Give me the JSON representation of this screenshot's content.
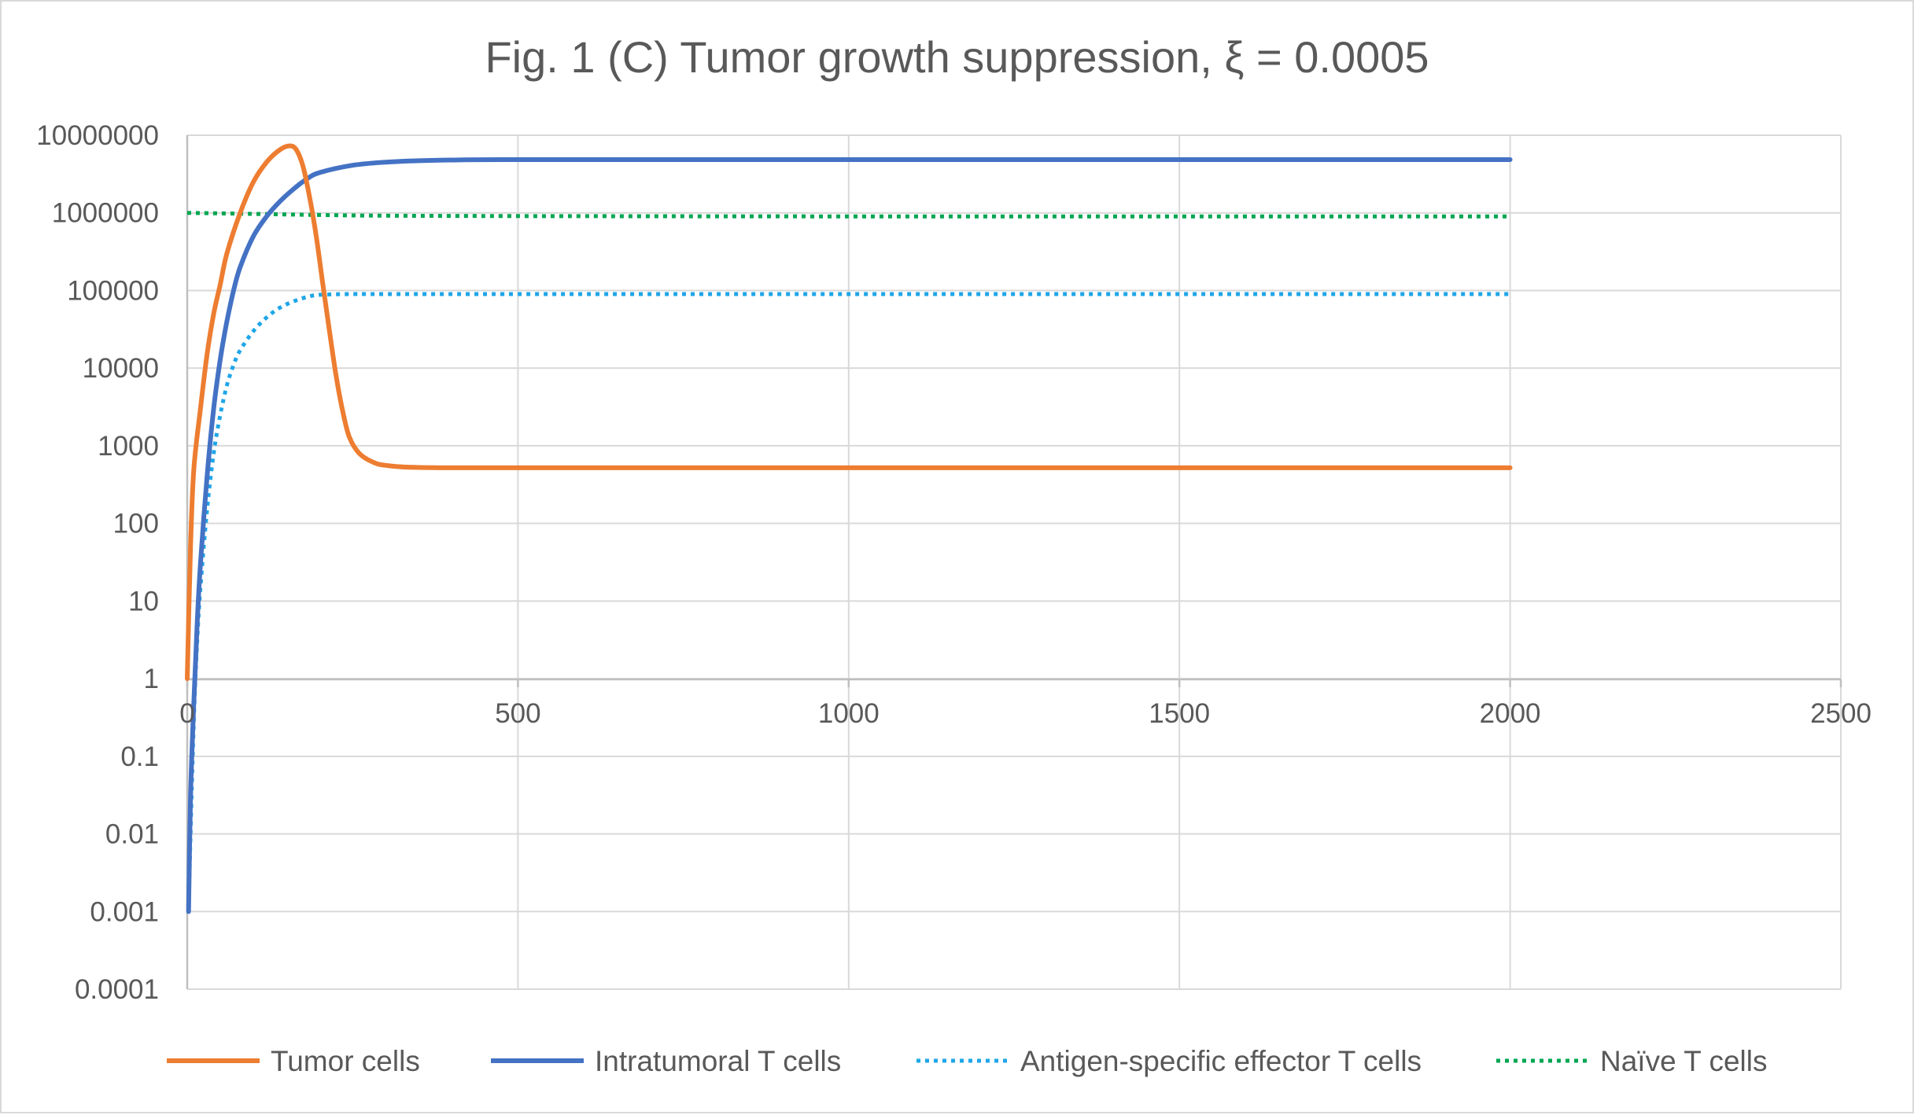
{
  "chart_data": {
    "type": "line",
    "title": "Fig. 1 (C) Tumor growth suppression, ξ = 0.0005",
    "xlabel": "",
    "ylabel": "",
    "xlim": [
      0,
      2500
    ],
    "ylim": [
      0.0001,
      10000000
    ],
    "y_scale": "log",
    "grid": true,
    "legend_position": "bottom",
    "x_ticks": [
      {
        "value": 0,
        "label": "0"
      },
      {
        "value": 500,
        "label": "500"
      },
      {
        "value": 1000,
        "label": "1000"
      },
      {
        "value": 1500,
        "label": "1500"
      },
      {
        "value": 2000,
        "label": "2000"
      },
      {
        "value": 2500,
        "label": "2500"
      }
    ],
    "y_ticks": [
      {
        "value": 10000000,
        "label": "10000000"
      },
      {
        "value": 1000000,
        "label": "1000000"
      },
      {
        "value": 100000,
        "label": "100000"
      },
      {
        "value": 10000,
        "label": "10000"
      },
      {
        "value": 1000,
        "label": "1000"
      },
      {
        "value": 100,
        "label": "100"
      },
      {
        "value": 10,
        "label": "10"
      },
      {
        "value": 1,
        "label": "1"
      },
      {
        "value": 0.1,
        "label": "0.1"
      },
      {
        "value": 0.01,
        "label": "0.01"
      },
      {
        "value": 0.001,
        "label": "0.001"
      },
      {
        "value": 0.0001,
        "label": "0.0001"
      }
    ],
    "series": [
      {
        "name": "Tumor cells",
        "color": "#ED7D31",
        "dash": "solid",
        "points": [
          [
            0,
            1
          ],
          [
            5,
            50
          ],
          [
            10,
            500
          ],
          [
            20,
            3000
          ],
          [
            30,
            15000
          ],
          [
            40,
            50000
          ],
          [
            50,
            120000
          ],
          [
            60,
            300000
          ],
          [
            80,
            1000000
          ],
          [
            100,
            2500000
          ],
          [
            120,
            4500000
          ],
          [
            140,
            6500000
          ],
          [
            155,
            7300000
          ],
          [
            165,
            6500000
          ],
          [
            175,
            4000000
          ],
          [
            185,
            1600000
          ],
          [
            195,
            500000
          ],
          [
            205,
            120000
          ],
          [
            215,
            30000
          ],
          [
            225,
            8000
          ],
          [
            235,
            2800
          ],
          [
            245,
            1300
          ],
          [
            260,
            800
          ],
          [
            280,
            620
          ],
          [
            300,
            560
          ],
          [
            350,
            525
          ],
          [
            500,
            520
          ],
          [
            1000,
            520
          ],
          [
            1500,
            520
          ],
          [
            2000,
            520
          ]
        ]
      },
      {
        "name": "Intratumoral T cells",
        "color": "#4472C4",
        "dash": "solid",
        "points": [
          [
            2,
            0.001
          ],
          [
            5,
            0.03
          ],
          [
            10,
            0.5
          ],
          [
            15,
            5
          ],
          [
            20,
            30
          ],
          [
            30,
            400
          ],
          [
            40,
            3000
          ],
          [
            50,
            13000
          ],
          [
            60,
            40000
          ],
          [
            70,
            100000
          ],
          [
            80,
            200000
          ],
          [
            100,
            500000
          ],
          [
            120,
            900000
          ],
          [
            140,
            1400000
          ],
          [
            160,
            2000000
          ],
          [
            180,
            2700000
          ],
          [
            200,
            3300000
          ],
          [
            250,
            4100000
          ],
          [
            300,
            4500000
          ],
          [
            350,
            4700000
          ],
          [
            400,
            4800000
          ],
          [
            500,
            4850000
          ],
          [
            1000,
            4850000
          ],
          [
            1500,
            4850000
          ],
          [
            2000,
            4850000
          ]
        ]
      },
      {
        "name": "Antigen-specific effector T cells",
        "color": "#1FA6E8",
        "dash": "dot",
        "points": [
          [
            2,
            0.001
          ],
          [
            5,
            0.01
          ],
          [
            10,
            0.3
          ],
          [
            15,
            3
          ],
          [
            20,
            15
          ],
          [
            30,
            150
          ],
          [
            40,
            800
          ],
          [
            50,
            2500
          ],
          [
            60,
            6000
          ],
          [
            70,
            11000
          ],
          [
            80,
            17000
          ],
          [
            100,
            30000
          ],
          [
            120,
            45000
          ],
          [
            140,
            60000
          ],
          [
            160,
            72000
          ],
          [
            180,
            82000
          ],
          [
            200,
            88000
          ],
          [
            250,
            90000
          ],
          [
            300,
            90000
          ],
          [
            500,
            90000
          ],
          [
            1000,
            90000
          ],
          [
            1500,
            90000
          ],
          [
            2000,
            90000
          ]
        ]
      },
      {
        "name": "Naïve T cells",
        "color": "#00A651",
        "dash": "dot",
        "points": [
          [
            0,
            1000000
          ],
          [
            100,
            970000
          ],
          [
            200,
            940000
          ],
          [
            300,
            920000
          ],
          [
            500,
            910000
          ],
          [
            1000,
            900000
          ],
          [
            1500,
            900000
          ],
          [
            2000,
            900000
          ]
        ]
      }
    ]
  }
}
